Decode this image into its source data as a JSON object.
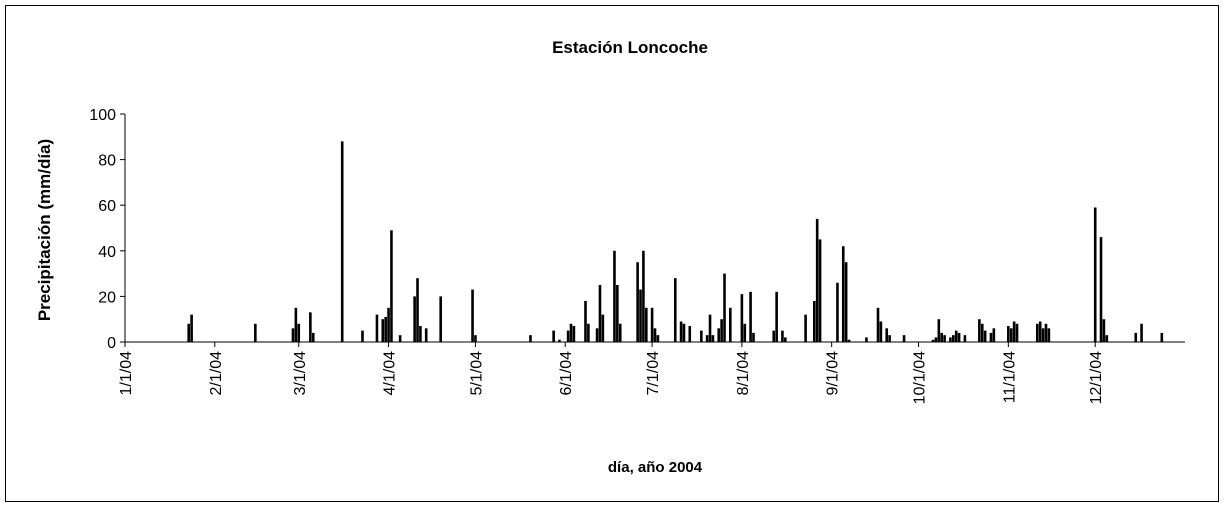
{
  "chart_data": {
    "type": "bar",
    "title": "Estación Loncoche",
    "x_label": "día, año 2004",
    "y_label": "Precipitación (mm/día)",
    "color": "#000000",
    "x": [
      "1/23/04",
      "1/24/04",
      "2/15/04",
      "2/28/04",
      "2/29/04",
      "3/1/04",
      "3/5/04",
      "3/6/04",
      "3/16/04",
      "3/23/04",
      "3/28/04",
      "3/30/04",
      "3/31/04",
      "4/1/04",
      "4/2/04",
      "4/5/04",
      "4/10/04",
      "4/11/04",
      "4/12/04",
      "4/14/04",
      "4/19/04",
      "4/30/04",
      "5/1/04",
      "5/20/04",
      "5/28/04",
      "5/30/04",
      "6/2/04",
      "6/3/04",
      "6/4/04",
      "6/8/04",
      "6/9/04",
      "6/12/04",
      "6/13/04",
      "6/14/04",
      "6/18/04",
      "6/19/04",
      "6/20/04",
      "6/26/04",
      "6/27/04",
      "6/28/04",
      "6/29/04",
      "7/1/04",
      "7/2/04",
      "7/3/04",
      "7/9/04",
      "7/11/04",
      "7/12/04",
      "7/14/04",
      "7/18/04",
      "7/20/04",
      "7/21/04",
      "7/22/04",
      "7/24/04",
      "7/25/04",
      "7/26/04",
      "7/28/04",
      "8/1/04",
      "8/2/04",
      "8/4/04",
      "8/5/04",
      "8/12/04",
      "8/13/04",
      "8/15/04",
      "8/16/04",
      "8/23/04",
      "8/26/04",
      "8/27/04",
      "8/28/04",
      "9/3/04",
      "9/5/04",
      "9/6/04",
      "9/7/04",
      "9/13/04",
      "9/17/04",
      "9/18/04",
      "9/20/04",
      "9/21/04",
      "9/26/04",
      "10/6/04",
      "10/7/04",
      "10/8/04",
      "10/9/04",
      "10/10/04",
      "10/12/04",
      "10/13/04",
      "10/14/04",
      "10/15/04",
      "10/17/04",
      "10/22/04",
      "10/23/04",
      "10/24/04",
      "10/26/04",
      "10/27/04",
      "11/1/04",
      "11/2/04",
      "11/3/04",
      "11/4/04",
      "11/11/04",
      "11/12/04",
      "11/13/04",
      "11/14/04",
      "11/15/04",
      "12/1/04",
      "12/3/04",
      "12/4/04",
      "12/5/04",
      "12/15/04",
      "12/17/04",
      "12/24/04"
    ],
    "values": [
      8,
      12,
      8,
      6,
      15,
      8,
      13,
      4,
      88,
      5,
      12,
      10,
      11,
      15,
      49,
      3,
      20,
      28,
      7,
      6,
      20,
      23,
      3,
      3,
      5,
      1,
      5,
      8,
      7,
      18,
      8,
      6,
      25,
      12,
      40,
      25,
      8,
      35,
      23,
      40,
      15,
      15,
      6,
      3,
      28,
      9,
      8,
      7,
      5,
      3,
      12,
      3,
      6,
      10,
      30,
      15,
      21,
      8,
      22,
      4,
      5,
      22,
      5,
      2,
      12,
      18,
      54,
      45,
      26,
      42,
      35,
      1,
      2,
      15,
      9,
      6,
      3,
      3,
      1,
      2,
      10,
      4,
      3,
      2,
      3,
      5,
      4,
      3,
      10,
      8,
      5,
      4,
      6,
      7,
      6,
      9,
      8,
      8,
      9,
      6,
      8,
      6,
      59,
      46,
      10,
      3,
      4,
      8,
      4
    ],
    "xlim": [
      "1/1/04",
      "1/1/05"
    ],
    "xticks": [
      "1/1/04",
      "2/1/04",
      "3/1/04",
      "4/1/04",
      "5/1/04",
      "6/1/04",
      "7/1/04",
      "8/1/04",
      "9/1/04",
      "10/1/04",
      "11/1/04",
      "12/1/04"
    ],
    "ylim": [
      0,
      100
    ],
    "yticks": [
      0,
      20,
      40,
      60,
      80,
      100
    ],
    "grid": false
  }
}
